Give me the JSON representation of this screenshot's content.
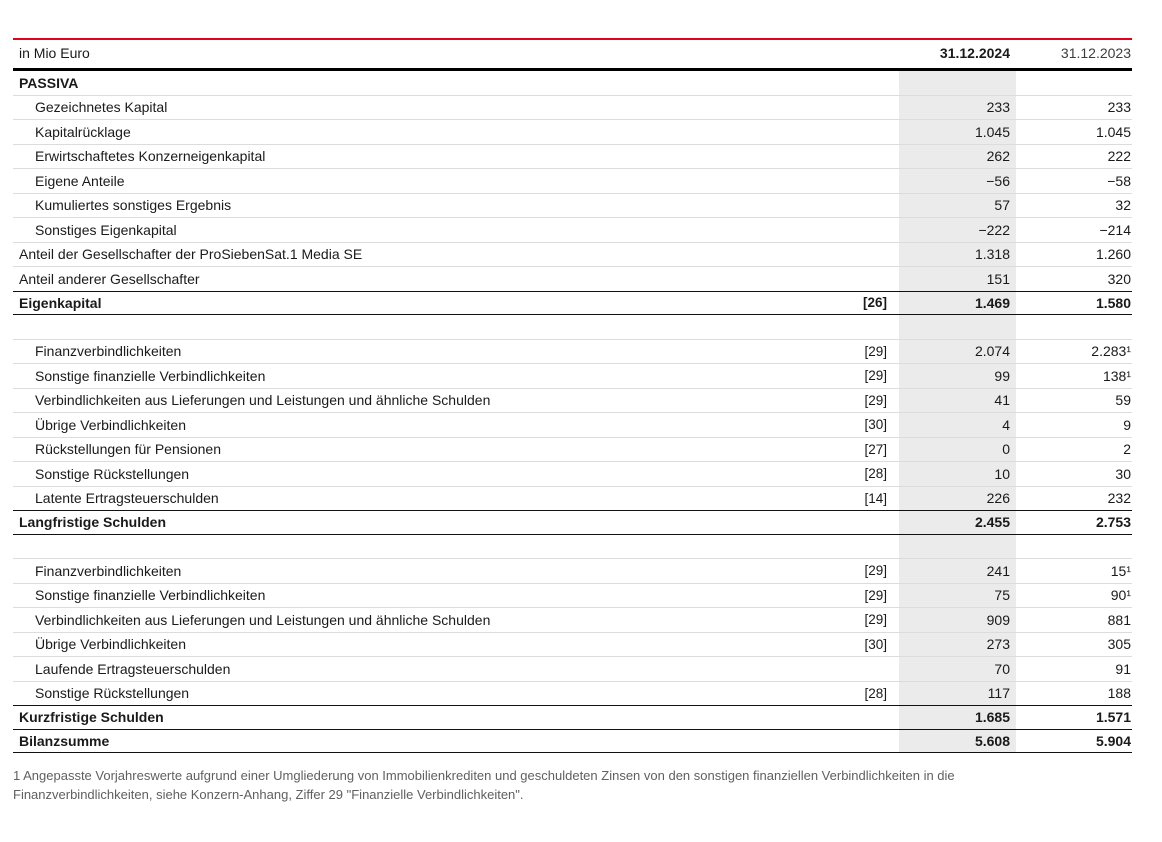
{
  "colors": {
    "accent_line": "#e2001a",
    "column_highlight": "#ebebeb"
  },
  "table": {
    "unit_label": "in Mio Euro",
    "columns": {
      "current": "31.12.2024",
      "previous": "31.12.2023"
    },
    "rows": [
      {
        "type": "section",
        "label": "PASSIVA"
      },
      {
        "type": "item",
        "indent": true,
        "label": "Gezeichnetes Kapital",
        "ref": "",
        "v2024": "233",
        "v2023": "233"
      },
      {
        "type": "item",
        "indent": true,
        "label": "Kapitalrücklage",
        "ref": "",
        "v2024": "1.045",
        "v2023": "1.045"
      },
      {
        "type": "item",
        "indent": true,
        "label": "Erwirtschaftetes Konzerneigenkapital",
        "ref": "",
        "v2024": "262",
        "v2023": "222"
      },
      {
        "type": "item",
        "indent": true,
        "label": "Eigene Anteile",
        "ref": "",
        "v2024": "−56",
        "v2023": "−58"
      },
      {
        "type": "item",
        "indent": true,
        "label": "Kumuliertes sonstiges Ergebnis",
        "ref": "",
        "v2024": "57",
        "v2023": "32"
      },
      {
        "type": "item",
        "indent": true,
        "label": "Sonstiges Eigenkapital",
        "ref": "",
        "v2024": "−222",
        "v2023": "−214"
      },
      {
        "type": "item",
        "indent": false,
        "label": "Anteil der Gesellschafter der ProSiebenSat.1 Media SE",
        "ref": "",
        "v2024": "1.318",
        "v2023": "1.260"
      },
      {
        "type": "item",
        "indent": false,
        "label": "Anteil anderer Gesellschafter",
        "ref": "",
        "v2024": "151",
        "v2023": "320"
      },
      {
        "type": "total",
        "label": "Eigenkapital",
        "ref": "[26]",
        "v2024": "1.469",
        "v2023": "1.580"
      },
      {
        "type": "spacer",
        "label": "",
        "ref": "",
        "v2024": "",
        "v2023": ""
      },
      {
        "type": "item",
        "indent": true,
        "label": "Finanzverbindlichkeiten",
        "ref": "[29]",
        "v2024": "2.074",
        "v2023": "2.283¹"
      },
      {
        "type": "item",
        "indent": true,
        "label": "Sonstige finanzielle Verbindlichkeiten",
        "ref": "[29]",
        "v2024": "99",
        "v2023": "138¹"
      },
      {
        "type": "item",
        "indent": true,
        "label": "Verbindlichkeiten aus Lieferungen und Leistungen und ähnliche Schulden",
        "ref": "[29]",
        "v2024": "41",
        "v2023": "59"
      },
      {
        "type": "item",
        "indent": true,
        "label": "Übrige Verbindlichkeiten",
        "ref": "[30]",
        "v2024": "4",
        "v2023": "9"
      },
      {
        "type": "item",
        "indent": true,
        "label": "Rückstellungen für Pensionen",
        "ref": "[27]",
        "v2024": "0",
        "v2023": "2"
      },
      {
        "type": "item",
        "indent": true,
        "label": "Sonstige Rückstellungen",
        "ref": "[28]",
        "v2024": "10",
        "v2023": "30"
      },
      {
        "type": "item",
        "indent": true,
        "label": "Latente Ertragsteuerschulden",
        "ref": "[14]",
        "v2024": "226",
        "v2023": "232"
      },
      {
        "type": "total",
        "label": "Langfristige Schulden",
        "ref": "",
        "v2024": "2.455",
        "v2023": "2.753"
      },
      {
        "type": "spacer",
        "label": "",
        "ref": "",
        "v2024": "",
        "v2023": ""
      },
      {
        "type": "item",
        "indent": true,
        "label": "Finanzverbindlichkeiten",
        "ref": "[29]",
        "v2024": "241",
        "v2023": "15¹"
      },
      {
        "type": "item",
        "indent": true,
        "label": "Sonstige finanzielle Verbindlichkeiten",
        "ref": "[29]",
        "v2024": "75",
        "v2023": "90¹"
      },
      {
        "type": "item",
        "indent": true,
        "label": "Verbindlichkeiten aus Lieferungen und Leistungen und ähnliche Schulden",
        "ref": "[29]",
        "v2024": "909",
        "v2023": "881"
      },
      {
        "type": "item",
        "indent": true,
        "label": "Übrige Verbindlichkeiten",
        "ref": "[30]",
        "v2024": "273",
        "v2023": "305"
      },
      {
        "type": "item",
        "indent": true,
        "label": "Laufende Ertragsteuerschulden",
        "ref": "",
        "v2024": "70",
        "v2023": "91"
      },
      {
        "type": "item",
        "indent": true,
        "label": "Sonstige Rückstellungen",
        "ref": "[28]",
        "v2024": "117",
        "v2023": "188"
      },
      {
        "type": "total",
        "label": "Kurzfristige Schulden",
        "ref": "",
        "v2024": "1.685",
        "v2023": "1.571"
      },
      {
        "type": "total",
        "label": "Bilanzsumme",
        "ref": "",
        "v2024": "5.608",
        "v2023": "5.904"
      }
    ]
  },
  "footnote": "1 Angepasste Vorjahreswerte aufgrund einer Umgliederung von Immobilienkrediten und geschuldeten Zinsen von den sonstigen finanziellen Verbindlichkeiten in die Finanzverbindlichkeiten, siehe Konzern-Anhang, Ziffer 29 \"Finanzielle Verbindlichkeiten\"."
}
